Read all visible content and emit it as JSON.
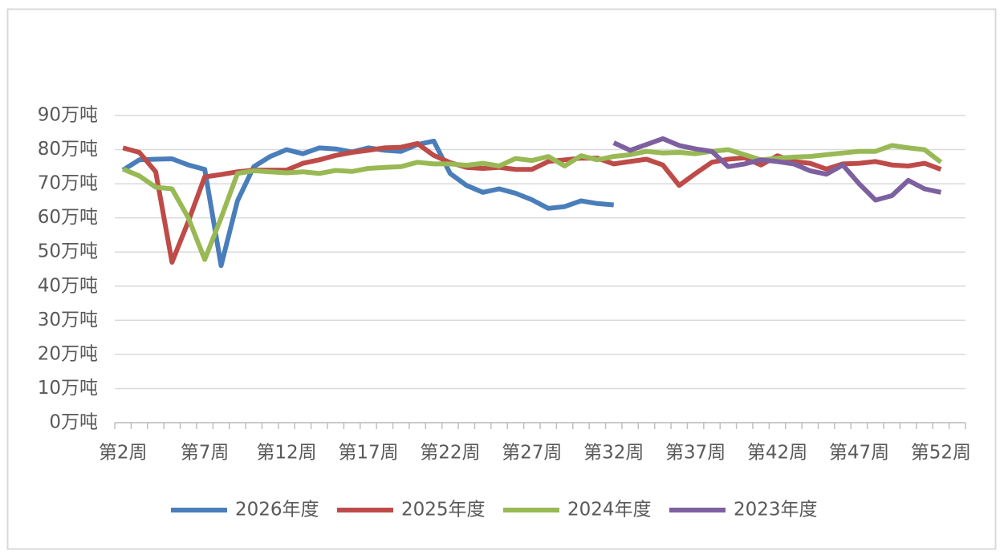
{
  "chart_data": {
    "type": "line",
    "categories": [
      "第2周",
      null,
      null,
      null,
      null,
      "第7周",
      null,
      null,
      null,
      null,
      "第12周",
      null,
      null,
      null,
      null,
      "第17周",
      null,
      null,
      null,
      null,
      "第22周",
      null,
      null,
      null,
      null,
      "第27周",
      null,
      null,
      null,
      null,
      "第32周",
      null,
      null,
      null,
      null,
      "第37周",
      null,
      null,
      null,
      null,
      "第42周",
      null,
      null,
      null,
      null,
      "第47周",
      null,
      null,
      null,
      null,
      "第52周",
      null
    ],
    "ylim": [
      0,
      90
    ],
    "yticks": [
      {
        "value": 0,
        "label": "0万吨"
      },
      {
        "value": 10,
        "label": "10万吨"
      },
      {
        "value": 20,
        "label": "20万吨"
      },
      {
        "value": 30,
        "label": "30万吨"
      },
      {
        "value": 40,
        "label": "40万吨"
      },
      {
        "value": 50,
        "label": "50万吨"
      },
      {
        "value": 60,
        "label": "60万吨"
      },
      {
        "value": 70,
        "label": "70万吨"
      },
      {
        "value": 80,
        "label": "80万吨"
      },
      {
        "value": 90,
        "label": "90万吨"
      }
    ],
    "grid": true,
    "legend": "bottom",
    "series": [
      {
        "name": "2026年度",
        "color": "#4a7ebb",
        "values": [
          74,
          77,
          77.2,
          77.3,
          75.5,
          74.2,
          46,
          65,
          75,
          78,
          80,
          78.8,
          80.5,
          80.2,
          79.3,
          80.5,
          79.8,
          79.5,
          81.5,
          82.5,
          73,
          69.5,
          67.5,
          68.5,
          67.2,
          65.3,
          62.8,
          63.3,
          65,
          64.2,
          63.8,
          null,
          null,
          null,
          null,
          null,
          null,
          null,
          null,
          null,
          null,
          null,
          null,
          null,
          null,
          null,
          null,
          null,
          null,
          null,
          null,
          null
        ]
      },
      {
        "name": "2025年度",
        "color": "#be4b48",
        "values": [
          80.5,
          79.2,
          73.5,
          47,
          59,
          72,
          72.7,
          73.5,
          74,
          74,
          74,
          76,
          77,
          78.3,
          79.2,
          79.8,
          80.5,
          80.7,
          81.8,
          78.3,
          76.2,
          74.8,
          74.5,
          74.8,
          74.2,
          74.2,
          76.5,
          77,
          77.5,
          77.5,
          75.8,
          76.5,
          77.2,
          75.5,
          69.5,
          73,
          76.3,
          77.2,
          77.6,
          75.5,
          78.2,
          76.5,
          76,
          74.3,
          75.8,
          76,
          76.5,
          75.5,
          75.2,
          76,
          74.2,
          null
        ]
      },
      {
        "name": "2024年度",
        "color": "#98b954",
        "values": [
          74.3,
          72.3,
          69,
          68.5,
          60,
          47.8,
          60,
          73,
          73.8,
          73.5,
          73.2,
          73.5,
          73,
          73.9,
          73.6,
          74.5,
          74.8,
          75,
          76.3,
          75.8,
          75.8,
          75.4,
          76,
          75.2,
          77.4,
          76.8,
          78,
          75.2,
          78.2,
          77,
          78,
          78.5,
          79.5,
          79,
          79.2,
          78.8,
          79.5,
          80,
          78.5,
          77,
          77.5,
          77.8,
          78,
          78.5,
          79,
          79.5,
          79.5,
          81.2,
          80.5,
          80,
          76.3,
          null
        ]
      },
      {
        "name": "2023年度",
        "color": "#7d60a0",
        "values": [
          null,
          null,
          null,
          null,
          null,
          null,
          null,
          null,
          null,
          null,
          null,
          null,
          null,
          null,
          null,
          null,
          null,
          null,
          null,
          null,
          null,
          null,
          null,
          null,
          null,
          null,
          null,
          null,
          null,
          null,
          82,
          79.8,
          81.5,
          83.2,
          81.2,
          80.2,
          79.5,
          75,
          75.8,
          77,
          76.5,
          75.8,
          73.8,
          72.8,
          75.5,
          70,
          65.2,
          66.5,
          71,
          68.5,
          67.5,
          null
        ]
      }
    ]
  }
}
